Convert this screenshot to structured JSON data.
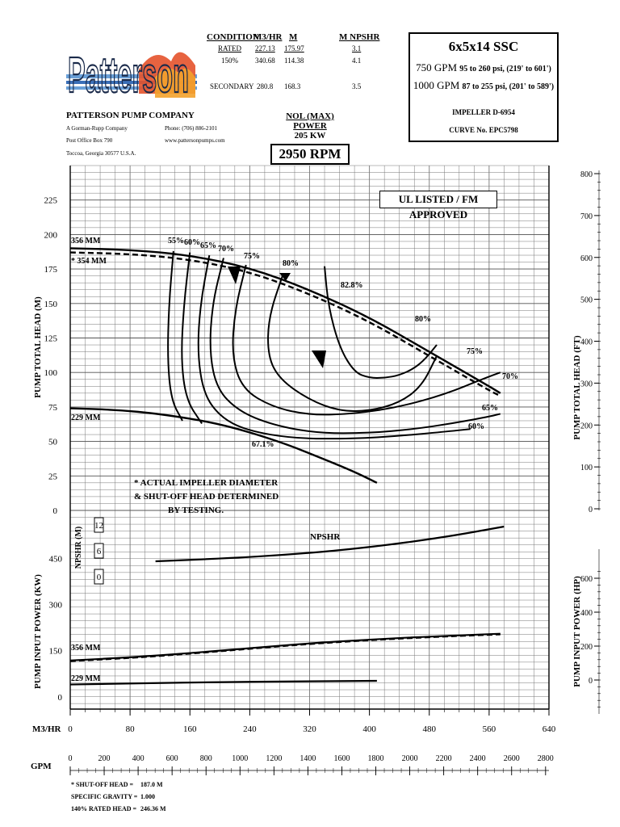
{
  "company": {
    "name": "PATTERSON PUMP COMPANY",
    "line1": "A Gorman-Rupp Company",
    "line2": "Post Office Box 790",
    "line3": "Toccoa, Georgia 30577 U.S.A.",
    "phone": "Phone: (706) 886-2101",
    "web": "www.pattersonpumps.com",
    "logo_text": "Patterson"
  },
  "conditions": {
    "headers": [
      "CONDITION",
      "M3/HR",
      "M",
      "M NPSHR"
    ],
    "rows": [
      [
        "RATED",
        "227.13",
        "175.97",
        "3.1"
      ],
      [
        "150%",
        "340.68",
        "114.38",
        "4.1"
      ],
      [
        "SECONDARY",
        "280.8",
        "168.3",
        "3.5"
      ]
    ]
  },
  "model": {
    "title": "6x5x14 SSC",
    "row1_flow": "750 GPM",
    "row1_range": "95 to 260 psi, (219' to 601')",
    "row2_flow": "1000 GPM",
    "row2_range": "87 to 255 psi, (201' to 589')",
    "impeller": "IMPELLER D-6954",
    "curve": "CURVE No. EPC5798"
  },
  "nol_label": "NOL (MAX) POWER",
  "nol_value": "205 KW",
  "rpm": "2950 RPM",
  "listing": "UL LISTED / FM APPROVED",
  "note": [
    "* ACTUAL IMPELLER DIAMETER",
    "& SHUT-OFF HEAD DETERMINED",
    "BY TESTING."
  ],
  "footer": [
    {
      "label": "* SHUT-OFF HEAD =",
      "value": "187.0 M"
    },
    {
      "label": "SPECIFIC GRAVITY =",
      "value": "1.000"
    },
    {
      "label": "140% RATED HEAD =",
      "value": "246.36 M"
    }
  ],
  "chart_data": {
    "type": "line",
    "x_label": "M3/HR",
    "x_ticks": [
      0,
      80,
      160,
      240,
      320,
      400,
      480,
      560,
      640
    ],
    "x_range": [
      0,
      640
    ],
    "gpm_label": "GPM",
    "gpm_ticks": [
      0,
      200,
      400,
      600,
      800,
      1000,
      1200,
      1400,
      1600,
      1800,
      2000,
      2200,
      2400,
      2600,
      2800
    ],
    "gpm_range": [
      0,
      2820
    ],
    "head": {
      "ylabel": "PUMP TOTAL HEAD (M)",
      "ylabel_right": "PUMP TOTAL HEAD (FT)",
      "ticks": [
        0,
        25,
        50,
        75,
        100,
        125,
        150,
        175,
        200,
        225
      ],
      "ticks_right": [
        100,
        200,
        300,
        400,
        500,
        600,
        700,
        800
      ],
      "range": [
        0,
        250
      ],
      "series": [
        {
          "name": "356 MM",
          "style": "solid",
          "x": [
            0,
            80,
            160,
            240,
            320,
            400,
            480,
            560,
            575
          ],
          "y": [
            190,
            189,
            185,
            176,
            160,
            140,
            115,
            90,
            85
          ]
        },
        {
          "name": "* 354 MM",
          "style": "dashed",
          "x": [
            0,
            80,
            160,
            240,
            320,
            400,
            480,
            560,
            575
          ],
          "y": [
            187,
            186,
            182,
            173,
            157,
            137,
            112,
            87,
            83
          ]
        },
        {
          "name": "229 MM",
          "style": "solid",
          "x": [
            0,
            60,
            120,
            200,
            280,
            340,
            380,
            410
          ],
          "y": [
            74,
            73,
            70,
            63,
            50,
            37,
            28,
            20
          ]
        }
      ],
      "efficiency_labels": [
        "55%",
        "60%",
        "65%",
        "70%",
        "75%",
        "80%",
        "82.8%",
        "80%",
        "75%",
        "70%",
        "65%",
        "60%",
        "67.1%"
      ],
      "efficiency_contours": [
        {
          "label": "55%",
          "x": [
            138,
            132,
            130,
            135,
            150
          ],
          "y": [
            188,
            150,
            110,
            80,
            65
          ]
        },
        {
          "label": "60%",
          "x": [
            160,
            152,
            148,
            155,
            176
          ],
          "y": [
            187,
            150,
            110,
            80,
            63
          ]
        },
        {
          "label": "65%",
          "x": [
            186,
            174,
            170,
            178,
            200,
            235,
            300,
            380,
            440,
            500,
            535
          ],
          "y": [
            185,
            150,
            115,
            85,
            68,
            58,
            52,
            52,
            54,
            57,
            59
          ]
        },
        {
          "label": "70%",
          "x": [
            205,
            190,
            186,
            196,
            225,
            270,
            330,
            400,
            460,
            510,
            560,
            575
          ],
          "y": [
            183,
            150,
            115,
            88,
            72,
            62,
            56,
            56,
            59,
            63,
            68,
            70
          ]
        },
        {
          "label": "75%",
          "x": [
            235,
            220,
            216,
            230,
            270,
            320,
            380,
            440,
            500,
            555,
            575
          ],
          "y": [
            178,
            145,
            112,
            88,
            75,
            69,
            70,
            75,
            84,
            96,
            100
          ]
        },
        {
          "label": "80%",
          "x": [
            285,
            265,
            264,
            280,
            320,
            360,
            400,
            440,
            470,
            490
          ],
          "y": [
            172,
            140,
            112,
            95,
            80,
            72,
            72,
            78,
            90,
            112
          ]
        },
        {
          "label": "82.8%",
          "x": [
            340,
            345,
            360,
            380,
            400,
            420,
            440,
            460,
            475,
            490
          ],
          "y": [
            177,
            148,
            118,
            100,
            96,
            96,
            98,
            103,
            110,
            120
          ]
        }
      ]
    },
    "npshr": {
      "label": "NPSHR",
      "ylabel": "NPSHR (M)",
      "ticks": [
        0,
        6,
        12
      ],
      "x": [
        114,
        200,
        300,
        400,
        500,
        580
      ],
      "y": [
        1.5,
        2.0,
        2.8,
        4.1,
        6.0,
        8.0
      ]
    },
    "power": {
      "ylabel": "PUMP INPUT POWER (KW)",
      "ylabel_right": "PUMP INPUT POWER (HP)",
      "ticks": [
        0,
        150,
        300,
        450
      ],
      "ticks_right": [
        0,
        200,
        400,
        600
      ],
      "range": [
        -40,
        480
      ],
      "series": [
        {
          "name": "356 MM",
          "style": "solid",
          "x": [
            0,
            80,
            160,
            240,
            320,
            400,
            480,
            575
          ],
          "y": [
            118,
            128,
            142,
            158,
            174,
            186,
            196,
            205
          ]
        },
        {
          "name": "* 354 MM",
          "style": "dashed",
          "x": [
            0,
            80,
            160,
            240,
            320,
            400,
            480,
            575
          ],
          "y": [
            116,
            126,
            140,
            156,
            172,
            184,
            194,
            203
          ]
        },
        {
          "name": "229 MM",
          "style": "solid",
          "x": [
            0,
            100,
            200,
            300,
            410
          ],
          "y": [
            40,
            44,
            48,
            50,
            52
          ]
        }
      ]
    }
  }
}
